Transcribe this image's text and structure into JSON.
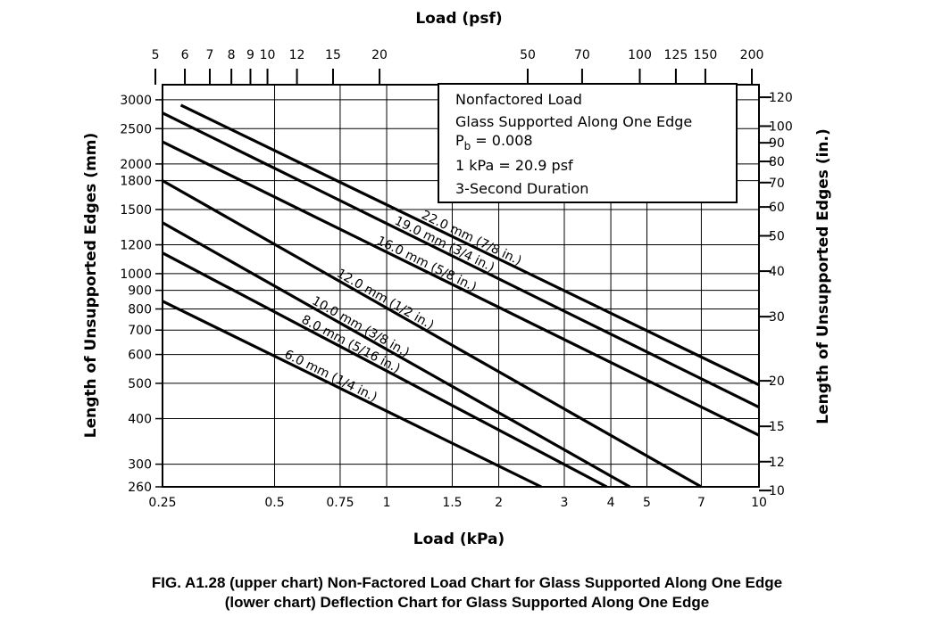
{
  "chart_data": {
    "type": "line",
    "title": "Load (psf)",
    "xlabel": "Load (kPa)",
    "ylabel_left": "Length of Unsupported Edges (mm)",
    "ylabel_right": "Length of Unsupported Edges (in.)",
    "x_scale": "log",
    "y_scale": "log",
    "xlim": [
      0.25,
      10
    ],
    "ylim": [
      260,
      3300
    ],
    "x_ticks": [
      {
        "value": 0.25,
        "label": "0.25"
      },
      {
        "value": 0.5,
        "label": "0.5"
      },
      {
        "value": 0.75,
        "label": "0.75"
      },
      {
        "value": 1,
        "label": "1"
      },
      {
        "value": 1.5,
        "label": "1.5"
      },
      {
        "value": 2,
        "label": "2"
      },
      {
        "value": 3,
        "label": "3"
      },
      {
        "value": 4,
        "label": "4"
      },
      {
        "value": 5,
        "label": "5"
      },
      {
        "value": 7,
        "label": "7"
      },
      {
        "value": 10,
        "label": "10"
      }
    ],
    "y_ticks": [
      {
        "value": 260,
        "label": "260"
      },
      {
        "value": 300,
        "label": "300"
      },
      {
        "value": 400,
        "label": "400"
      },
      {
        "value": 500,
        "label": "500"
      },
      {
        "value": 600,
        "label": "600"
      },
      {
        "value": 700,
        "label": "700"
      },
      {
        "value": 800,
        "label": "800"
      },
      {
        "value": 900,
        "label": "900"
      },
      {
        "value": 1000,
        "label": "1000"
      },
      {
        "value": 1200,
        "label": "1200"
      },
      {
        "value": 1500,
        "label": "1500"
      },
      {
        "value": 1800,
        "label": "1800"
      },
      {
        "value": 2000,
        "label": "2000"
      },
      {
        "value": 2500,
        "label": "2500"
      },
      {
        "value": 3000,
        "label": "3000"
      }
    ],
    "top_ticks": [
      {
        "value": 5,
        "label": "5"
      },
      {
        "value": 6,
        "label": "6"
      },
      {
        "value": 7,
        "label": "7"
      },
      {
        "value": 8,
        "label": "8"
      },
      {
        "value": 9,
        "label": "9"
      },
      {
        "value": 10,
        "label": "10"
      },
      {
        "value": 12,
        "label": "12"
      },
      {
        "value": 15,
        "label": "15"
      },
      {
        "value": 20,
        "label": "20"
      },
      {
        "value": 50,
        "label": "50"
      },
      {
        "value": 70,
        "label": "70"
      },
      {
        "value": 100,
        "label": "100"
      },
      {
        "value": 125,
        "label": "125"
      },
      {
        "value": 150,
        "label": "150"
      },
      {
        "value": 200,
        "label": "200"
      }
    ],
    "right_ticks": [
      {
        "value": 10,
        "label": "10"
      },
      {
        "value": 12,
        "label": "12"
      },
      {
        "value": 15,
        "label": "15"
      },
      {
        "value": 20,
        "label": "20"
      },
      {
        "value": 30,
        "label": "30"
      },
      {
        "value": 40,
        "label": "40"
      },
      {
        "value": 50,
        "label": "50"
      },
      {
        "value": 60,
        "label": "60"
      },
      {
        "value": 70,
        "label": "70"
      },
      {
        "value": 80,
        "label": "80"
      },
      {
        "value": 90,
        "label": "90"
      },
      {
        "value": 100,
        "label": "100"
      },
      {
        "value": 120,
        "label": "120"
      }
    ],
    "legend_box": {
      "placement": "top-right",
      "lines": [
        "Nonfactored Load",
        "Glass Supported Along One Edge",
        "= 0.008",
        "1 kPa = 20.9 psf",
        "3-Second Duration"
      ],
      "pb_main": "P",
      "pb_sub": "b"
    },
    "series": [
      {
        "name": "22.0 mm (7/8 in.)",
        "x": [
          0.28,
          10
        ],
        "y": [
          2900,
          495
        ]
      },
      {
        "name": "19.0 mm (3/4 in.)",
        "x": [
          0.25,
          10
        ],
        "y": [
          2760,
          430
        ]
      },
      {
        "name": "16.0 mm (5/8 in.)",
        "x": [
          0.25,
          10
        ],
        "y": [
          2300,
          360
        ]
      },
      {
        "name": "12.0 mm (1/2 in.)",
        "x": [
          0.25,
          7
        ],
        "y": [
          1800,
          260
        ]
      },
      {
        "name": "10.0 mm (3/8 in.)",
        "x": [
          0.25,
          4.5
        ],
        "y": [
          1380,
          260
        ]
      },
      {
        "name": "8.0 mm (5/16 in.)",
        "x": [
          0.25,
          3.9
        ],
        "y": [
          1140,
          260
        ]
      },
      {
        "name": "6.0 mm (1/4 in.)",
        "x": [
          0.25,
          2.6
        ],
        "y": [
          840,
          260
        ]
      }
    ],
    "grid": true
  },
  "caption": {
    "line1": "FIG. A1.28 (upper chart) Non-Factored Load Chart for Glass Supported Along One Edge",
    "line2": "(lower chart) Deflection Chart for Glass Supported Along One Edge"
  }
}
